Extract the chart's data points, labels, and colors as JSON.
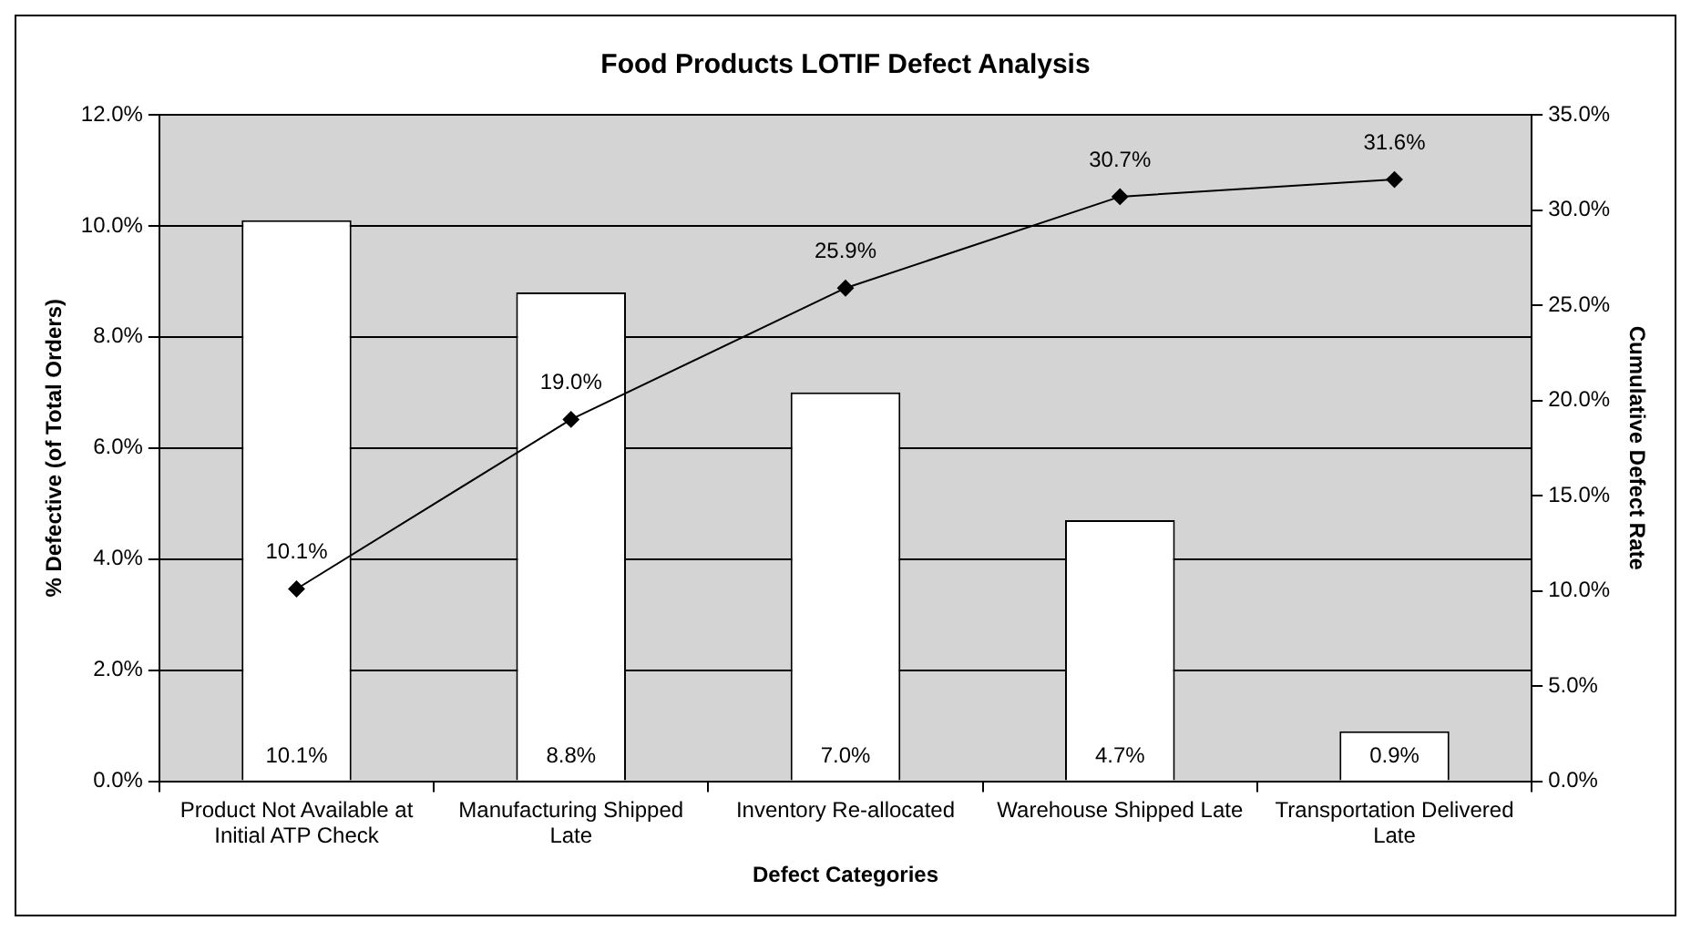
{
  "chart_data": {
    "type": "bar",
    "title": "Food Products LOTIF Defect Analysis",
    "xlabel": "Defect Categories",
    "ylabel": "% Defective (of Total Orders)",
    "y2label": "Cumulative Defect Rate",
    "categories": [
      "Product Not Available at Initial ATP Check",
      "Manufacturing Shipped Late",
      "Inventory Re-allocated",
      "Warehouse Shipped Late",
      "Transportation Delivered Late"
    ],
    "series": [
      {
        "color": "#ffffff",
        "values": [
          10.1,
          8.8,
          7.0,
          4.7,
          0.9
        ],
        "value_labels": [
          "10.1%",
          "8.8%",
          "7.0%",
          "4.7%",
          "0.9%"
        ]
      },
      {
        "type": "line",
        "axis": "y2",
        "color": "#000000",
        "values": [
          10.1,
          19.0,
          25.9,
          30.7,
          31.6
        ],
        "value_labels": [
          "10.1%",
          "19.0%",
          "25.9%",
          "30.7%",
          "31.6%"
        ]
      }
    ],
    "ylim": [
      0,
      12
    ],
    "yticks": [
      {
        "value": 0,
        "label": "0.0%"
      },
      {
        "value": 2,
        "label": "2.0%"
      },
      {
        "value": 4,
        "label": "4.0%"
      },
      {
        "value": 6,
        "label": "6.0%"
      },
      {
        "value": 8,
        "label": "8.0%"
      },
      {
        "value": 10,
        "label": "10.0%"
      },
      {
        "value": 12,
        "label": "12.0%"
      }
    ],
    "y2lim": [
      0,
      35
    ],
    "y2ticks": [
      {
        "value": 0,
        "label": "0.0%"
      },
      {
        "value": 5,
        "label": "5.0%"
      },
      {
        "value": 10,
        "label": "10.0%"
      },
      {
        "value": 15,
        "label": "15.0%"
      },
      {
        "value": 20,
        "label": "20.0%"
      },
      {
        "value": 25,
        "label": "25.0%"
      },
      {
        "value": 30,
        "label": "30.0%"
      },
      {
        "value": 35,
        "label": "35.0%"
      }
    ],
    "grid": "y",
    "legend": false,
    "marker": "diamond",
    "line_style": "solid"
  }
}
